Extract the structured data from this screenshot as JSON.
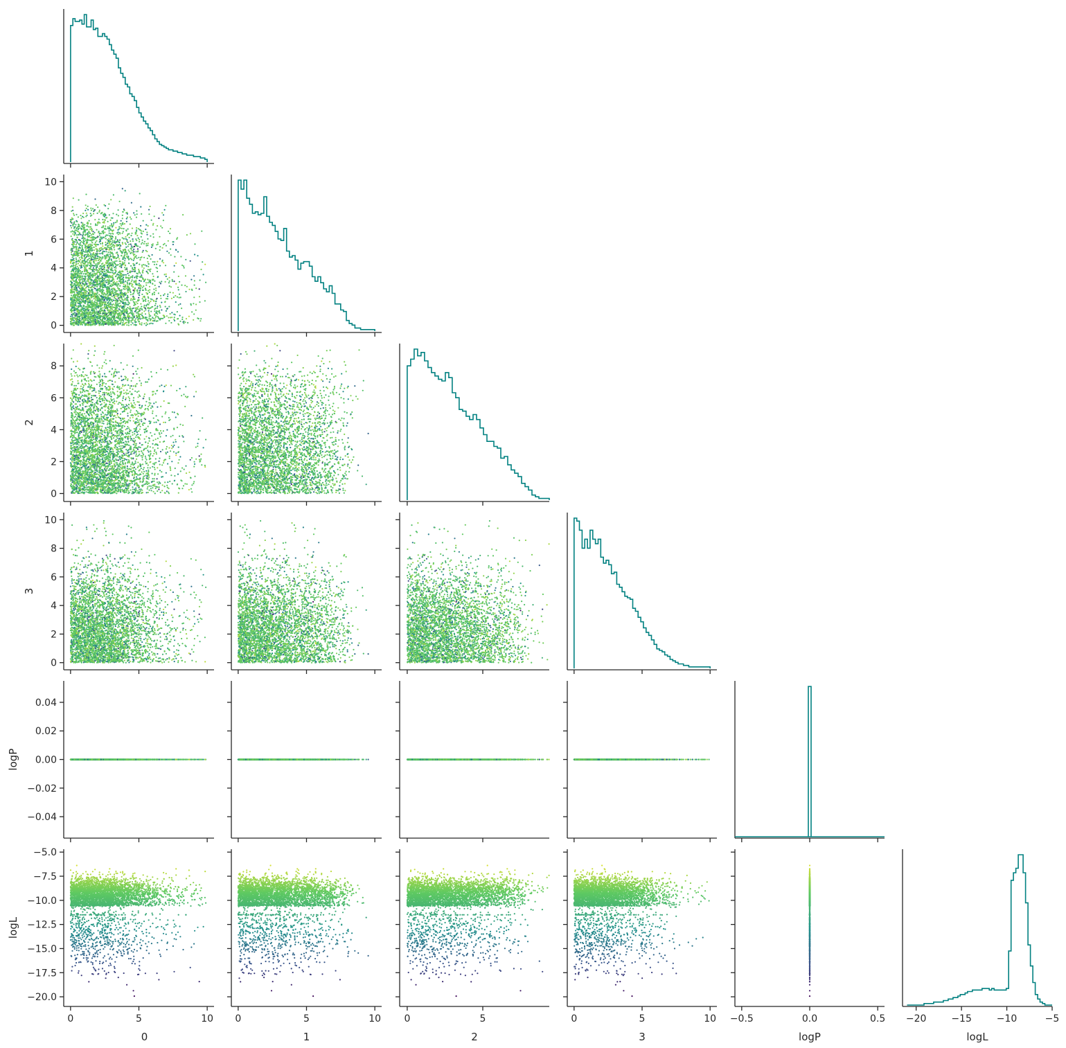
{
  "chart_data": {
    "type": "scatter",
    "layout": "corner-plot (pairwise scatter, lower triangle; step histograms on diagonal)",
    "variables": [
      "0",
      "1",
      "2",
      "3",
      "logP",
      "logL"
    ],
    "diagonal": "step histogram",
    "off_diagonal": "scatter, colored by logL (viridis)",
    "colors": {
      "histogram": "#008080",
      "colormap": [
        "#440154",
        "#3b528b",
        "#21918c",
        "#5ec962",
        "#fde725"
      ]
    },
    "axes": [
      {
        "name": "0",
        "range": [
          -0.5,
          10.5
        ],
        "ticks": [
          0,
          5,
          10
        ]
      },
      {
        "name": "1",
        "range": [
          -0.5,
          10.5
        ],
        "ticks": [
          0,
          2,
          4,
          6,
          8,
          10
        ],
        "ticks_x": [
          0,
          5,
          10
        ]
      },
      {
        "name": "2",
        "range": [
          -0.5,
          9.4
        ],
        "ticks": [
          0,
          2,
          4,
          6,
          8
        ],
        "ticks_x": [
          0,
          5
        ]
      },
      {
        "name": "3",
        "range": [
          -0.5,
          10.5
        ],
        "ticks": [
          0,
          2,
          4,
          6,
          8,
          10
        ],
        "ticks_x": [
          0,
          5,
          10
        ]
      },
      {
        "name": "logP",
        "range": [
          -0.055,
          0.055
        ],
        "ticks": [
          -0.04,
          -0.02,
          0.0,
          0.02,
          0.04
        ],
        "ticks_x": [
          -0.5,
          0.0,
          0.5
        ],
        "range_x": [
          -0.55,
          0.55
        ]
      },
      {
        "name": "logL",
        "range": [
          -21.0,
          -4.7
        ],
        "ticks": [
          -20.0,
          -17.5,
          -15.0,
          -12.5,
          -10.0,
          -7.5,
          -5.0
        ],
        "ticks_x": [
          -20,
          -15,
          -10,
          -5
        ],
        "range_x": [
          -21.5,
          -5
        ]
      }
    ],
    "tick_labels": {
      "0": [
        "0",
        "5",
        "10"
      ],
      "1_y": [
        "0",
        "2",
        "4",
        "6",
        "8",
        "10"
      ],
      "1_x": [
        "0",
        "5",
        "10"
      ],
      "2_y": [
        "0",
        "2",
        "4",
        "6",
        "8"
      ],
      "2_x": [
        "0",
        "5"
      ],
      "3_y": [
        "0",
        "2",
        "4",
        "6",
        "8",
        "10"
      ],
      "3_x": [
        "0",
        "5",
        "10"
      ],
      "logP_y": [
        "0.04",
        "0.02",
        "0.00",
        "−0.02",
        "−0.04"
      ],
      "logP_x": [
        "−0.5",
        "0.0",
        "0.5"
      ],
      "logL_y": [
        "−5.0",
        "−7.5",
        "−10.0",
        "−12.5",
        "−15.0",
        "−17.5",
        "−20.0"
      ],
      "logL_x": [
        "−20",
        "−15",
        "−10",
        "−5"
      ]
    },
    "histograms": [
      {
        "variable": "0",
        "bin_range": [
          0,
          10
        ],
        "counts": [
          100,
          105,
          103,
          103,
          104,
          101,
          108,
          99,
          99,
          104,
          97,
          98,
          92,
          92,
          94,
          92,
          90,
          86,
          82,
          79,
          76,
          69,
          65,
          62,
          57,
          55,
          50,
          48,
          45,
          40,
          36,
          33,
          30,
          28,
          25,
          23,
          20,
          17,
          15,
          13,
          12,
          11,
          10,
          9,
          9,
          8,
          8,
          7,
          7,
          6,
          6,
          5,
          5,
          5,
          4,
          4,
          4,
          3,
          3,
          2
        ]
      },
      {
        "variable": "1",
        "bin_range": [
          0,
          10
        ],
        "counts": [
          100,
          94,
          100,
          88,
          84,
          78,
          79,
          77,
          78,
          89,
          76,
          72,
          70,
          66,
          61,
          60,
          68,
          53,
          49,
          50,
          47,
          41,
          45,
          46,
          46,
          43,
          36,
          33,
          36,
          32,
          28,
          26,
          30,
          25,
          18,
          18,
          14,
          13,
          7,
          5,
          4,
          2,
          2,
          1,
          1,
          1,
          1,
          1
        ]
      },
      {
        "variable": "2",
        "bin_range": [
          0,
          9.4
        ],
        "counts": [
          80,
          84,
          90,
          86,
          88,
          83,
          79,
          76,
          74,
          72,
          71,
          76,
          73,
          64,
          61,
          54,
          53,
          50,
          48,
          51,
          48,
          43,
          39,
          35,
          35,
          32,
          31,
          25,
          26,
          21,
          18,
          16,
          14,
          10,
          8,
          6,
          3,
          2,
          1,
          1,
          1
        ]
      },
      {
        "variable": "3",
        "bin_range": [
          0,
          10
        ],
        "counts": [
          100,
          98,
          92,
          80,
          86,
          80,
          92,
          86,
          83,
          86,
          74,
          70,
          72,
          69,
          63,
          64,
          56,
          54,
          51,
          48,
          47,
          46,
          40,
          38,
          34,
          31,
          27,
          24,
          22,
          19,
          16,
          13,
          12,
          11,
          9,
          8,
          6,
          5,
          4,
          3,
          3,
          2,
          2,
          1,
          1,
          1,
          1,
          1,
          1,
          1,
          1
        ]
      },
      {
        "variable": "logP",
        "bin_range": [
          -0.01,
          0.01
        ],
        "counts": [
          100
        ],
        "note": "single spike at 0.00"
      },
      {
        "variable": "logL",
        "bin_range": [
          -21,
          -5
        ],
        "counts": [
          0,
          0,
          0,
          0,
          0,
          0,
          0,
          1,
          1,
          1,
          1,
          2,
          2,
          2,
          2,
          3,
          3,
          4,
          4,
          5,
          5,
          6,
          7,
          7,
          8,
          9,
          9,
          10,
          10,
          10,
          10,
          11,
          11,
          11,
          10,
          11,
          10,
          10,
          10,
          10,
          10,
          11,
          36,
          83,
          88,
          91,
          100,
          100,
          88,
          68,
          40,
          26,
          15,
          7,
          4,
          2,
          1,
          0,
          0,
          0
        ]
      }
    ],
    "samples": 4000
  }
}
